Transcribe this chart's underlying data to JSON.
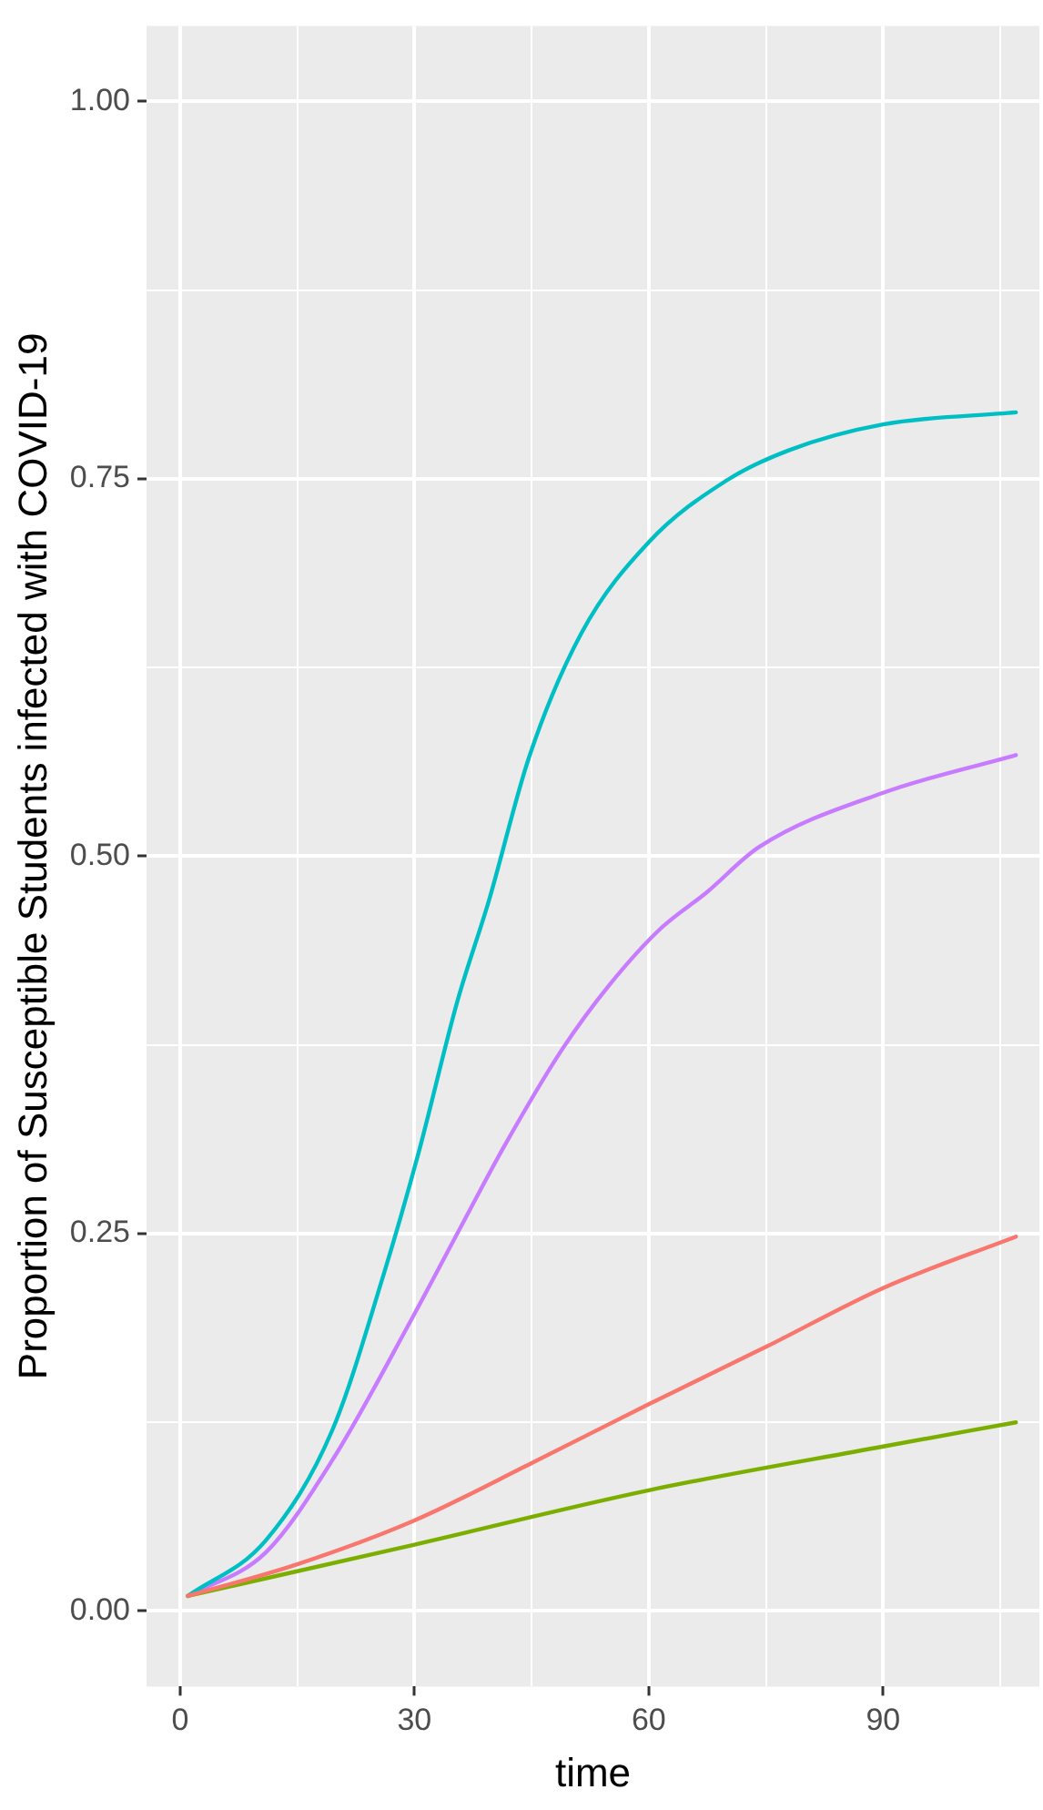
{
  "chart_data": {
    "type": "line",
    "xlabel": "time",
    "ylabel": "Proportion of Susceptible Students infected with COVID-19",
    "grid": true,
    "legend": false,
    "marker": "none",
    "line_style": "solid",
    "xlim": [
      -4.3,
      110
    ],
    "ylim": [
      -0.05,
      1.05
    ],
    "xticks": [
      0,
      {
        "value": 15,
        "label": null
      },
      30,
      {
        "value": 45,
        "label": null
      },
      60,
      {
        "value": 75,
        "label": null
      },
      90,
      {
        "value": 105,
        "label": null
      }
    ],
    "yticks": [
      {
        "value": 0,
        "label": "0.00"
      },
      {
        "value": 0.125,
        "label": null
      },
      {
        "value": 0.25,
        "label": "0.25"
      },
      {
        "value": 0.375,
        "label": null
      },
      {
        "value": 0.5,
        "label": "0.50"
      },
      {
        "value": 0.625,
        "label": null
      },
      {
        "value": 0.75,
        "label": "0.75"
      },
      {
        "value": 0.875,
        "label": null
      },
      {
        "value": 1,
        "label": "1.00"
      }
    ],
    "series": [
      {
        "color": "#f8766d",
        "x": [
          1,
          15,
          30,
          45,
          60,
          75,
          90,
          107
        ],
        "values": [
          0.01,
          0.031,
          0.06,
          0.098,
          0.137,
          0.175,
          0.214,
          0.248
        ]
      },
      {
        "color": "#7cae00",
        "x": [
          1,
          30,
          60,
          90,
          107
        ],
        "values": [
          0.01,
          0.044,
          0.08,
          0.109,
          0.125
        ]
      },
      {
        "color": "#00bfc4",
        "x": [
          1,
          11,
          19.5,
          26,
          30.5,
          35.5,
          39.5,
          44.7,
          51.4,
          60,
          70,
          78,
          90,
          107
        ],
        "values": [
          0.01,
          0.047,
          0.12,
          0.222,
          0.303,
          0.404,
          0.47,
          0.566,
          0.648,
          0.708,
          0.749,
          0.769,
          0.786,
          0.794
        ]
      },
      {
        "color": "#c77cff",
        "x": [
          1,
          11,
          19.5,
          29.6,
          36.3,
          41.4,
          48.9,
          55,
          61.5,
          67.4,
          74.1,
          90,
          107
        ],
        "values": [
          0.01,
          0.039,
          0.1,
          0.193,
          0.258,
          0.307,
          0.372,
          0.415,
          0.452,
          0.476,
          0.506,
          0.542,
          0.567
        ]
      }
    ]
  }
}
